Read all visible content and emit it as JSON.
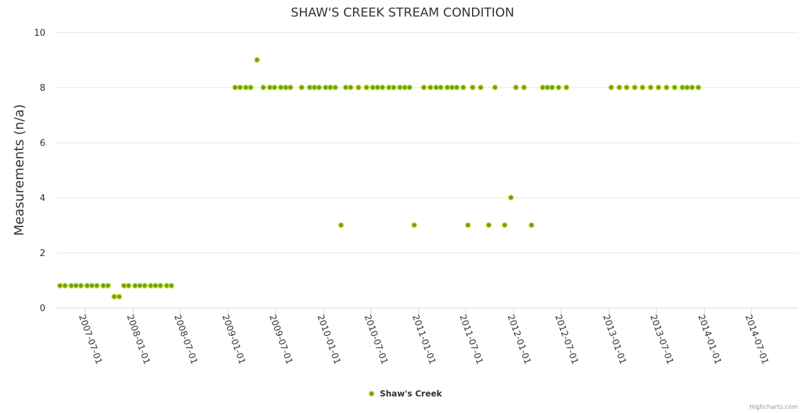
{
  "credits": "Highcharts.com",
  "chart_data": {
    "type": "scatter",
    "title": "SHAW'S CREEK STREAM CONDITION",
    "xlabel": "",
    "ylabel": "Measurements (n/a)",
    "ylim": [
      0,
      10
    ],
    "yticks": [
      0,
      2,
      4,
      6,
      8,
      10
    ],
    "xlim": [
      "2007-03-13",
      "2014-12-27"
    ],
    "xticks": [
      "2007-07-01",
      "2008-01-01",
      "2008-07-01",
      "2009-01-01",
      "2009-07-01",
      "2010-01-01",
      "2010-07-01",
      "2011-01-01",
      "2011-07-01",
      "2012-01-01",
      "2012-07-01",
      "2013-01-01",
      "2013-07-01",
      "2014-01-01",
      "2014-07-01"
    ],
    "grid": true,
    "legend_position": "bottom-center",
    "colors": {
      "marker_fill": "#6fa00a",
      "marker_stroke": "#c8e04a"
    },
    "series": [
      {
        "name": "Shaw's Creek",
        "points": [
          [
            "2007-03-27",
            0.8
          ],
          [
            "2007-04-15",
            0.8
          ],
          [
            "2007-05-09",
            0.8
          ],
          [
            "2007-05-27",
            0.8
          ],
          [
            "2007-06-15",
            0.8
          ],
          [
            "2007-07-09",
            0.8
          ],
          [
            "2007-07-27",
            0.8
          ],
          [
            "2007-08-15",
            0.8
          ],
          [
            "2007-09-09",
            0.8
          ],
          [
            "2007-09-27",
            0.8
          ],
          [
            "2007-10-21",
            0.4
          ],
          [
            "2007-11-09",
            0.4
          ],
          [
            "2007-11-27",
            0.8
          ],
          [
            "2007-12-15",
            0.8
          ],
          [
            "2008-01-09",
            0.8
          ],
          [
            "2008-01-27",
            0.8
          ],
          [
            "2008-02-15",
            0.8
          ],
          [
            "2008-03-09",
            0.8
          ],
          [
            "2008-03-27",
            0.8
          ],
          [
            "2008-04-15",
            0.8
          ],
          [
            "2008-05-09",
            0.8
          ],
          [
            "2008-05-27",
            0.8
          ],
          [
            "2009-01-27",
            8
          ],
          [
            "2009-02-15",
            8
          ],
          [
            "2009-03-09",
            8
          ],
          [
            "2009-03-27",
            8
          ],
          [
            "2009-04-21",
            9
          ],
          [
            "2009-05-15",
            8
          ],
          [
            "2009-06-09",
            8
          ],
          [
            "2009-06-27",
            8
          ],
          [
            "2009-07-21",
            8
          ],
          [
            "2009-08-09",
            8
          ],
          [
            "2009-08-27",
            8
          ],
          [
            "2009-10-09",
            8
          ],
          [
            "2009-11-09",
            8
          ],
          [
            "2009-11-27",
            8
          ],
          [
            "2009-12-15",
            8
          ],
          [
            "2010-01-09",
            8
          ],
          [
            "2010-01-27",
            8
          ],
          [
            "2010-02-15",
            8
          ],
          [
            "2010-03-09",
            3
          ],
          [
            "2010-03-27",
            8
          ],
          [
            "2010-04-15",
            8
          ],
          [
            "2010-05-15",
            8
          ],
          [
            "2010-06-15",
            8
          ],
          [
            "2010-07-09",
            8
          ],
          [
            "2010-07-27",
            8
          ],
          [
            "2010-08-15",
            8
          ],
          [
            "2010-09-09",
            8
          ],
          [
            "2010-09-27",
            8
          ],
          [
            "2010-10-21",
            8
          ],
          [
            "2010-11-09",
            8
          ],
          [
            "2010-11-27",
            8
          ],
          [
            "2010-12-15",
            3
          ],
          [
            "2011-01-21",
            8
          ],
          [
            "2011-02-15",
            8
          ],
          [
            "2011-03-09",
            8
          ],
          [
            "2011-03-27",
            8
          ],
          [
            "2011-04-21",
            8
          ],
          [
            "2011-05-09",
            8
          ],
          [
            "2011-05-27",
            8
          ],
          [
            "2011-06-21",
            8
          ],
          [
            "2011-07-09",
            3
          ],
          [
            "2011-07-27",
            8
          ],
          [
            "2011-08-27",
            8
          ],
          [
            "2011-09-27",
            3
          ],
          [
            "2011-10-21",
            8
          ],
          [
            "2011-11-27",
            3
          ],
          [
            "2011-12-21",
            4
          ],
          [
            "2012-01-09",
            8
          ],
          [
            "2012-02-09",
            8
          ],
          [
            "2012-03-09",
            3
          ],
          [
            "2012-04-21",
            8
          ],
          [
            "2012-05-09",
            8
          ],
          [
            "2012-05-27",
            8
          ],
          [
            "2012-06-21",
            8
          ],
          [
            "2012-07-21",
            8
          ],
          [
            "2013-01-09",
            8
          ],
          [
            "2013-02-09",
            8
          ],
          [
            "2013-03-09",
            8
          ],
          [
            "2013-04-09",
            8
          ],
          [
            "2013-05-09",
            8
          ],
          [
            "2013-06-09",
            8
          ],
          [
            "2013-07-09",
            8
          ],
          [
            "2013-08-09",
            8
          ],
          [
            "2013-09-09",
            8
          ],
          [
            "2013-10-09",
            8
          ],
          [
            "2013-10-27",
            8
          ],
          [
            "2013-11-15",
            8
          ],
          [
            "2013-12-09",
            8
          ]
        ]
      }
    ]
  }
}
